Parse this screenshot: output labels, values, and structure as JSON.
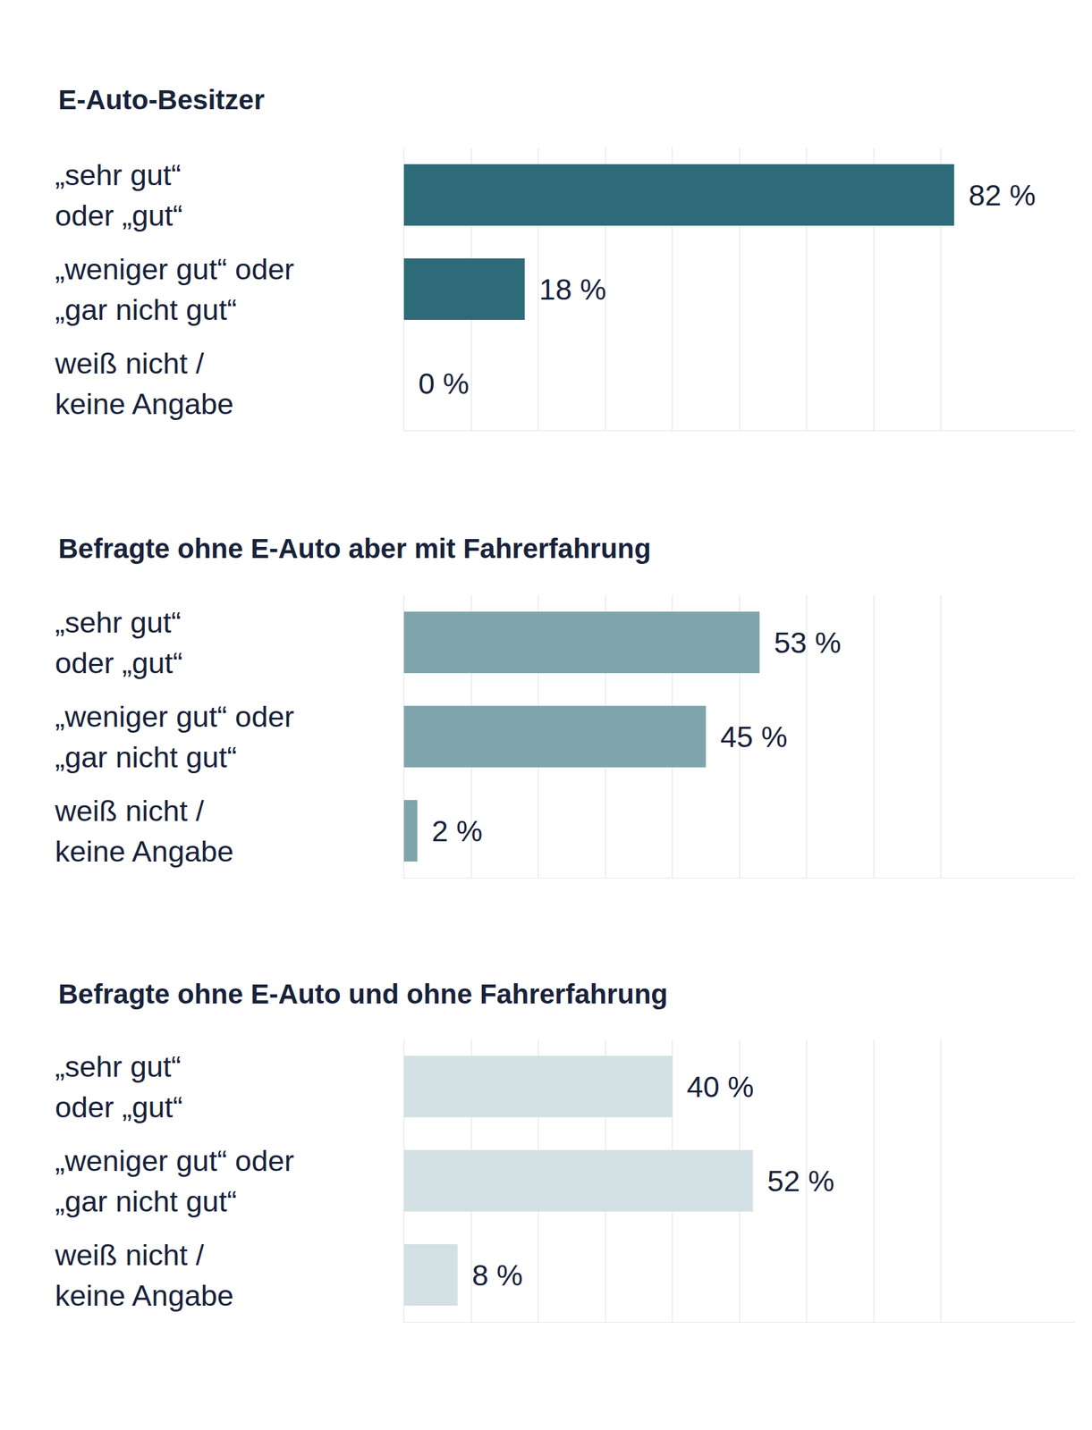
{
  "chart_data": [
    {
      "type": "bar",
      "title": "E-Auto-Besitzer",
      "categories": [
        "„sehr gut“\noder „gut“",
        "„weniger gut“ oder\n„gar nicht gut“",
        "weiß nicht /\nkeine Angabe"
      ],
      "values": [
        82,
        18,
        0
      ],
      "value_labels": [
        "82 %",
        "18 %",
        "0 %"
      ],
      "color": "#2e6b78",
      "orientation": "horizontal",
      "data_labels": true,
      "grid": true,
      "tick_labels": "y",
      "xlim": [
        0,
        100
      ],
      "xticks": [
        0,
        10,
        20,
        30,
        40,
        50,
        60,
        70,
        80
      ]
    },
    {
      "type": "bar",
      "title": "Befragte ohne E-Auto aber mit Fahrerfahrung",
      "categories": [
        "„sehr gut“\noder „gut“",
        "„weniger gut“ oder\n„gar nicht gut“",
        "weiß nicht /\nkeine Angabe"
      ],
      "values": [
        53,
        45,
        2
      ],
      "value_labels": [
        "53 %",
        "45 %",
        "2 %"
      ],
      "color": "#7fa5ac",
      "orientation": "horizontal",
      "data_labels": true,
      "grid": true,
      "tick_labels": "y",
      "xlim": [
        0,
        100
      ],
      "xticks": [
        0,
        10,
        20,
        30,
        40,
        50,
        60,
        70,
        80
      ]
    },
    {
      "type": "bar",
      "title": "Befragte ohne E-Auto und ohne Fahrerfahrung",
      "categories": [
        "„sehr gut“\noder „gut“",
        "„weniger gut“ oder\n„gar nicht gut“",
        "weiß nicht /\nkeine Angabe"
      ],
      "values": [
        40,
        52,
        8
      ],
      "value_labels": [
        "40 %",
        "52 %",
        "8 %"
      ],
      "color": "#d3e1e5",
      "orientation": "horizontal",
      "data_labels": true,
      "grid": true,
      "tick_labels": "y",
      "xlim": [
        0,
        100
      ],
      "xticks": [
        0,
        10,
        20,
        30,
        40,
        50,
        60,
        70,
        80
      ]
    }
  ]
}
